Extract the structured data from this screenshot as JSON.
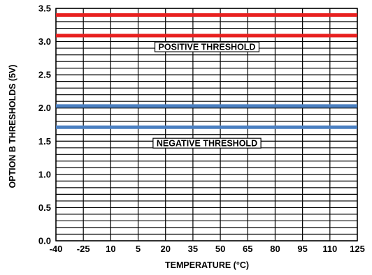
{
  "chart_data": {
    "type": "line",
    "x": [
      -40,
      -25,
      10,
      5,
      20,
      35,
      50,
      65,
      80,
      95,
      110,
      125
    ],
    "ylim": [
      0.0,
      3.5
    ],
    "yticks": [
      "0.0",
      "0.5",
      "1.0",
      "1.5",
      "2.0",
      "2.5",
      "3.0",
      "3.5"
    ],
    "xlabel": "TEMPERATURE (°C)",
    "ylabel": "OPTION B THRESHOLDS (5V)",
    "grid": true,
    "series": [
      {
        "color": "#e8201f",
        "values": [
          3.4,
          3.4,
          3.4,
          3.4,
          3.4,
          3.4,
          3.4,
          3.4,
          3.4,
          3.4,
          3.4,
          3.4
        ]
      },
      {
        "color": "#e8201f",
        "values": [
          3.09,
          3.09,
          3.09,
          3.09,
          3.09,
          3.09,
          3.09,
          3.09,
          3.09,
          3.09,
          3.09,
          3.09
        ]
      },
      {
        "color": "#4a7fc1",
        "values": [
          2.03,
          2.03,
          2.03,
          2.03,
          2.03,
          2.03,
          2.03,
          2.03,
          2.03,
          2.03,
          2.03,
          2.03
        ]
      },
      {
        "color": "#4a7fc1",
        "values": [
          1.71,
          1.71,
          1.71,
          1.71,
          1.71,
          1.71,
          1.71,
          1.71,
          1.71,
          1.71,
          1.71,
          1.71
        ]
      }
    ],
    "annotations": [
      {
        "text": "POSITIVE THRESHOLD",
        "y": 2.92
      },
      {
        "text": "NEGATIVE THRESHOLD",
        "y": 1.47
      }
    ]
  }
}
